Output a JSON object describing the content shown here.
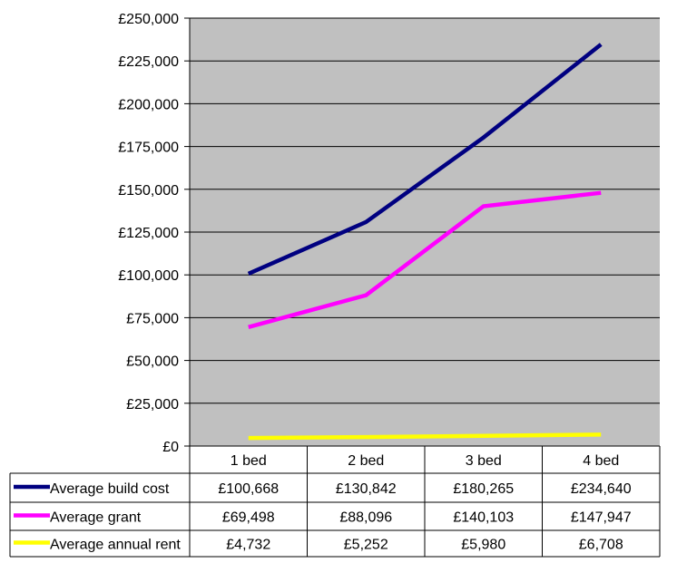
{
  "chart_data": {
    "type": "line",
    "title": "",
    "xlabel": "",
    "ylabel": "",
    "categories": [
      "1 bed",
      "2 bed",
      "3 bed",
      "4 bed"
    ],
    "ylim": [
      0,
      250000
    ],
    "y_ticks": [
      0,
      25000,
      50000,
      75000,
      100000,
      125000,
      150000,
      175000,
      200000,
      225000,
      250000
    ],
    "y_tick_labels": [
      "£0",
      "£25,000",
      "£50,000",
      "£75,000",
      "£100,000",
      "£125,000",
      "£150,000",
      "£175,000",
      "£200,000",
      "£225,000",
      "£250,000"
    ],
    "grid": true,
    "plot_background": "#c0c0c0",
    "legend": "data-table-below",
    "series": [
      {
        "name": "Average build cost",
        "color": "#000080",
        "values": [
          100668,
          130842,
          180265,
          234640
        ],
        "value_labels": [
          "£100,668",
          "£130,842",
          "£180,265",
          "£234,640"
        ]
      },
      {
        "name": "Average grant",
        "color": "#ff00ff",
        "values": [
          69498,
          88096,
          140103,
          147947
        ],
        "value_labels": [
          "£69,498",
          "£88,096",
          "£140,103",
          "£147,947"
        ]
      },
      {
        "name": "Average annual rent",
        "color": "#ffff00",
        "values": [
          4732,
          5252,
          5980,
          6708
        ],
        "value_labels": [
          "£4,732",
          "£5,252",
          "£5,980",
          "£6,708"
        ]
      }
    ]
  }
}
